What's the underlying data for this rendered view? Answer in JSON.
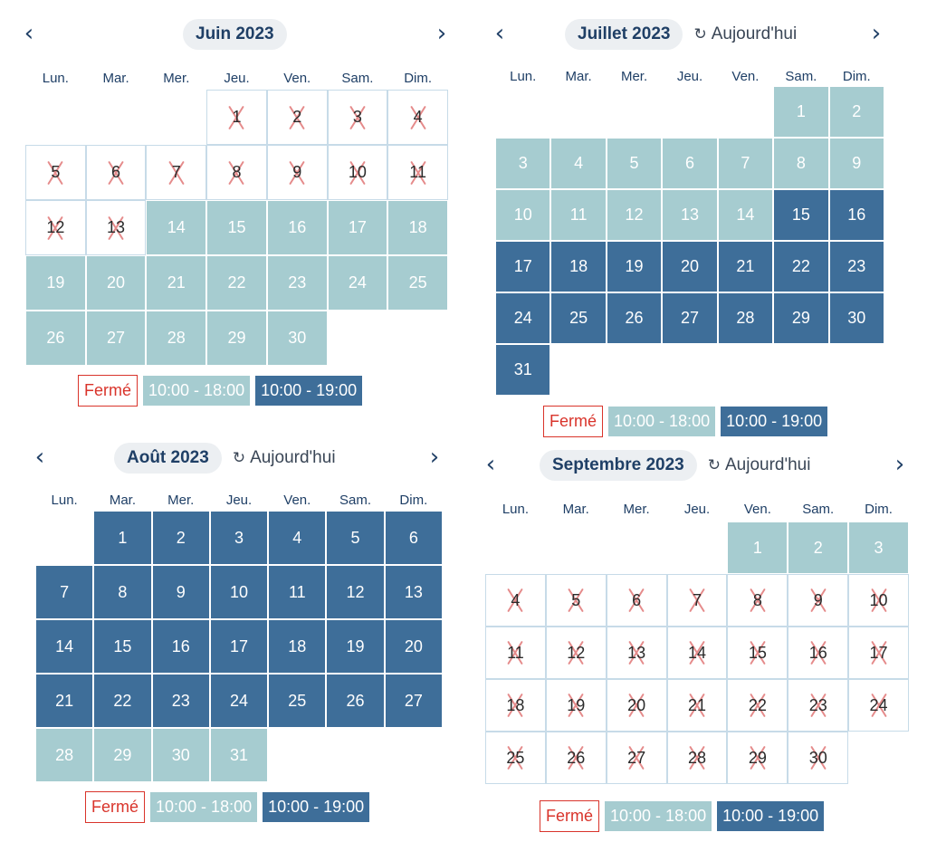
{
  "weekdays": [
    "Lun.",
    "Mar.",
    "Mer.",
    "Jeu.",
    "Ven.",
    "Sam.",
    "Dim."
  ],
  "legend": {
    "closed": "Fermé",
    "s1": "10:00 - 18:00",
    "s2": "10:00 - 19:00"
  },
  "today_label": "Aujourd'hui",
  "nav": {
    "prev": "‹",
    "next": "›"
  },
  "icons": {
    "prev": "chevron-left-icon",
    "next": "chevron-right-icon",
    "today": "refresh-icon"
  },
  "colors": {
    "slot_18": "#a6ccd0",
    "slot_19": "#3e6e99",
    "closed_border": "#d9342b",
    "closed_cross": "#e58b8b",
    "title_pill": "#eceff2"
  },
  "calendars": [
    {
      "id": "juin-2023",
      "title": "Juin 2023",
      "show_today": false,
      "offset": 3,
      "days": 30,
      "closed": [
        1,
        2,
        3,
        4,
        5,
        6,
        7,
        8,
        9,
        10,
        11,
        12,
        13
      ],
      "s2": []
    },
    {
      "id": "juillet-2023",
      "title": "Juillet 2023",
      "show_today": true,
      "offset": 5,
      "days": 31,
      "closed": [],
      "s2": [
        15,
        16,
        17,
        18,
        19,
        20,
        21,
        22,
        23,
        24,
        25,
        26,
        27,
        28,
        29,
        30,
        31
      ]
    },
    {
      "id": "aout-2023",
      "title": "Août 2023",
      "show_today": true,
      "offset": 1,
      "days": 31,
      "closed": [],
      "s2": [
        1,
        2,
        3,
        4,
        5,
        6,
        7,
        8,
        9,
        10,
        11,
        12,
        13,
        14,
        15,
        16,
        17,
        18,
        19,
        20,
        21,
        22,
        23,
        24,
        25,
        26,
        27
      ]
    },
    {
      "id": "septembre-2023",
      "title": "Septembre 2023",
      "show_today": true,
      "offset": 4,
      "days": 30,
      "closed": [
        4,
        5,
        6,
        7,
        8,
        9,
        10,
        11,
        12,
        13,
        14,
        15,
        16,
        17,
        18,
        19,
        20,
        21,
        22,
        23,
        24,
        25,
        26,
        27,
        28,
        29,
        30
      ],
      "s2": []
    }
  ]
}
